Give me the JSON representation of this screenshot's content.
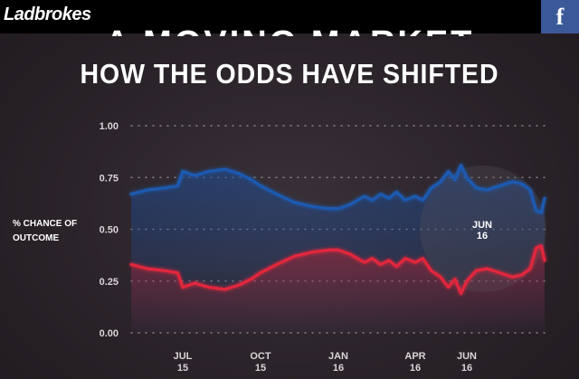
{
  "header": {
    "logo_text": "Ladbrokes",
    "facebook_label": "f",
    "background": "#000000",
    "facebook_color": "#3b5998"
  },
  "title": {
    "line1": "A MOVING MARKET",
    "line2": "HOW THE ODDS HAVE SHIFTED"
  },
  "chart_data": {
    "type": "area",
    "title": "A MOVING MARKET",
    "subtitle": "HOW THE ODDS HAVE SHIFTED",
    "ylabel": "% CHANCE OF OUTCOME",
    "xlabel": "",
    "ylim": [
      0,
      1
    ],
    "yticks": [
      "0.00",
      "0.25",
      "0.50",
      "0.75",
      "1.00"
    ],
    "ytick_values": [
      0,
      0.25,
      0.5,
      0.75,
      1.0
    ],
    "xticks": [
      {
        "line1": "JUL",
        "line2": "15",
        "date": "2015-07-01"
      },
      {
        "line1": "OCT",
        "line2": "15",
        "date": "2015-10-01"
      },
      {
        "line1": "JAN",
        "line2": "16",
        "date": "2016-01-01"
      },
      {
        "line1": "APR",
        "line2": "16",
        "date": "2016-04-01"
      },
      {
        "line1": "JUN",
        "line2": "16",
        "date": "2016-06-01"
      }
    ],
    "xlim": [
      "2015-05-01",
      "2016-09-01"
    ],
    "grid": "horizontal dotted",
    "highlight": {
      "line1": "JUN",
      "line2": "16",
      "date": "2016-06-23"
    },
    "series": [
      {
        "color": "#1f5ab0",
        "points": [
          [
            "2015-05-01",
            0.67
          ],
          [
            "2015-05-20",
            0.69
          ],
          [
            "2015-06-10",
            0.7
          ],
          [
            "2015-06-25",
            0.71
          ],
          [
            "2015-07-01",
            0.78
          ],
          [
            "2015-07-15",
            0.76
          ],
          [
            "2015-08-01",
            0.78
          ],
          [
            "2015-08-20",
            0.79
          ],
          [
            "2015-09-05",
            0.77
          ],
          [
            "2015-09-20",
            0.74
          ],
          [
            "2015-10-01",
            0.71
          ],
          [
            "2015-10-20",
            0.67
          ],
          [
            "2015-11-10",
            0.63
          ],
          [
            "2015-12-01",
            0.61
          ],
          [
            "2015-12-20",
            0.6
          ],
          [
            "2016-01-01",
            0.6
          ],
          [
            "2016-01-15",
            0.62
          ],
          [
            "2016-02-01",
            0.66
          ],
          [
            "2016-02-10",
            0.64
          ],
          [
            "2016-02-20",
            0.67
          ],
          [
            "2016-03-01",
            0.65
          ],
          [
            "2016-03-10",
            0.68
          ],
          [
            "2016-03-20",
            0.64
          ],
          [
            "2016-04-01",
            0.66
          ],
          [
            "2016-04-10",
            0.64
          ],
          [
            "2016-04-20",
            0.7
          ],
          [
            "2016-05-01",
            0.73
          ],
          [
            "2016-05-10",
            0.78
          ],
          [
            "2016-05-18",
            0.74
          ],
          [
            "2016-05-25",
            0.81
          ],
          [
            "2016-06-01",
            0.75
          ],
          [
            "2016-06-12",
            0.7
          ],
          [
            "2016-06-25",
            0.69
          ],
          [
            "2016-07-10",
            0.71
          ],
          [
            "2016-07-25",
            0.73
          ],
          [
            "2016-08-05",
            0.72
          ],
          [
            "2016-08-15",
            0.69
          ],
          [
            "2016-08-22",
            0.59
          ],
          [
            "2016-08-28",
            0.58
          ],
          [
            "2016-09-01",
            0.65
          ]
        ]
      },
      {
        "color": "#e2283c",
        "points": [
          [
            "2015-05-01",
            0.33
          ],
          [
            "2015-05-20",
            0.31
          ],
          [
            "2015-06-10",
            0.3
          ],
          [
            "2015-06-25",
            0.29
          ],
          [
            "2015-07-01",
            0.22
          ],
          [
            "2015-07-15",
            0.24
          ],
          [
            "2015-08-01",
            0.22
          ],
          [
            "2015-08-20",
            0.21
          ],
          [
            "2015-09-05",
            0.23
          ],
          [
            "2015-09-20",
            0.26
          ],
          [
            "2015-10-01",
            0.29
          ],
          [
            "2015-10-20",
            0.33
          ],
          [
            "2015-11-10",
            0.37
          ],
          [
            "2015-12-01",
            0.39
          ],
          [
            "2015-12-20",
            0.4
          ],
          [
            "2016-01-01",
            0.4
          ],
          [
            "2016-01-15",
            0.38
          ],
          [
            "2016-02-01",
            0.34
          ],
          [
            "2016-02-10",
            0.36
          ],
          [
            "2016-02-20",
            0.33
          ],
          [
            "2016-03-01",
            0.35
          ],
          [
            "2016-03-10",
            0.32
          ],
          [
            "2016-03-20",
            0.36
          ],
          [
            "2016-04-01",
            0.34
          ],
          [
            "2016-04-10",
            0.36
          ],
          [
            "2016-04-20",
            0.3
          ],
          [
            "2016-05-01",
            0.27
          ],
          [
            "2016-05-10",
            0.22
          ],
          [
            "2016-05-18",
            0.26
          ],
          [
            "2016-05-25",
            0.19
          ],
          [
            "2016-06-01",
            0.25
          ],
          [
            "2016-06-12",
            0.3
          ],
          [
            "2016-06-25",
            0.31
          ],
          [
            "2016-07-10",
            0.29
          ],
          [
            "2016-07-25",
            0.27
          ],
          [
            "2016-08-05",
            0.28
          ],
          [
            "2016-08-15",
            0.31
          ],
          [
            "2016-08-22",
            0.41
          ],
          [
            "2016-08-28",
            0.42
          ],
          [
            "2016-09-01",
            0.35
          ]
        ]
      }
    ]
  }
}
